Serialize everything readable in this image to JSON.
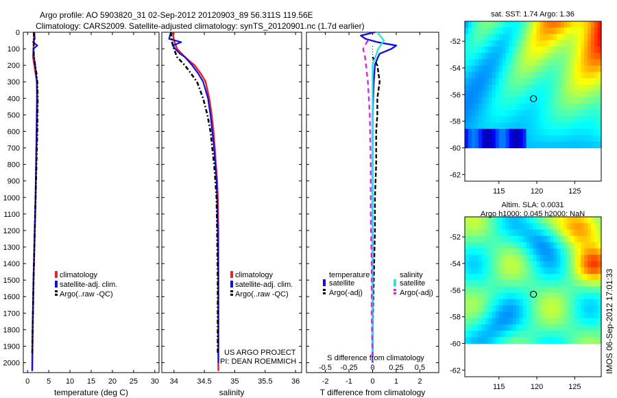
{
  "header": {
    "title_line1": "Argo profile: AO 5903820_31 02-Sep-2012 20120903_89 56.311S 119.56E",
    "title_line2": "Climatology: CARS2009. Satellite-adjusted climatology: synTS_20120901.nc (1.7d earlier)"
  },
  "colors": {
    "climatology": "#e8262a",
    "satellite": "#1010e0",
    "argo": "#000000",
    "salinity_satellite": "#30e0e0",
    "salinity_argo": "#e020e0"
  },
  "chart_data": [
    {
      "type": "line",
      "id": "temperature",
      "xlabel": "temperature (deg C)",
      "ylabel": "",
      "xlim": [
        -1,
        31
      ],
      "ylim": [
        2060,
        0
      ],
      "xticks": [
        0,
        5,
        10,
        15,
        20,
        25,
        30
      ],
      "yticks": [
        0,
        100,
        200,
        300,
        400,
        500,
        600,
        700,
        800,
        900,
        1000,
        1100,
        1200,
        1300,
        1400,
        1500,
        1600,
        1700,
        1800,
        1900,
        2000
      ],
      "legend": {
        "placement": "lower-center",
        "entries": [
          "climatology",
          "satellite-adj. clim.",
          "Argo(..raw -QC)"
        ]
      },
      "series": [
        {
          "name": "climatology",
          "depth": [
            0,
            50,
            100,
            150,
            200,
            300,
            400,
            600,
            800,
            1000,
            1200,
            1500,
            1800,
            2050
          ],
          "values": [
            1.5,
            1.5,
            1.4,
            1.3,
            1.6,
            2.2,
            2.3,
            2.2,
            2.0,
            1.9,
            1.7,
            1.4,
            1.2,
            1.1
          ]
        },
        {
          "name": "satellite-adj. clim.",
          "depth": [
            0,
            40,
            60,
            80,
            100,
            150,
            200,
            300,
            400,
            600,
            800,
            1000,
            1200,
            1500,
            1800,
            2050
          ],
          "values": [
            1.6,
            1.7,
            1.3,
            2.3,
            1.4,
            1.5,
            1.8,
            2.2,
            2.2,
            2.1,
            2.0,
            1.9,
            1.7,
            1.4,
            1.2,
            1.1
          ]
        },
        {
          "name": "Argo(..raw -QC)",
          "depth": [
            0,
            50,
            100,
            150,
            200,
            250,
            300,
            400,
            600,
            800,
            1000,
            1200,
            1500,
            1800,
            1950
          ],
          "values": [
            1.5,
            1.5,
            1.4,
            1.5,
            1.8,
            2.1,
            2.3,
            2.4,
            2.3,
            2.1,
            1.9,
            1.7,
            1.4,
            1.2,
            1.1
          ]
        }
      ]
    },
    {
      "type": "line",
      "id": "salinity",
      "xlabel": "salinity",
      "ylabel": "",
      "xlim": [
        33.8,
        36.1
      ],
      "ylim": [
        2060,
        0
      ],
      "xticks": [
        34,
        34.5,
        35,
        35.5,
        36
      ],
      "legend": {
        "placement": "lower-center",
        "entries": [
          "climatology",
          "satellite-adj. clim.",
          "Argo(..raw -QC)"
        ]
      },
      "annotation": [
        "US ARGO PROJECT",
        "PI: DEAN ROEMMICH"
      ],
      "series": [
        {
          "name": "climatology",
          "depth": [
            0,
            50,
            100,
            150,
            200,
            250,
            300,
            400,
            500,
            600,
            700,
            800,
            900,
            1000,
            1200,
            1500,
            1800,
            2050
          ],
          "values": [
            33.98,
            34.0,
            34.05,
            34.18,
            34.34,
            34.44,
            34.52,
            34.58,
            34.62,
            34.65,
            34.67,
            34.69,
            34.71,
            34.72,
            34.73,
            34.73,
            34.73,
            34.73
          ]
        },
        {
          "name": "satellite-adj. clim.",
          "depth": [
            0,
            40,
            60,
            80,
            100,
            130,
            150,
            200,
            250,
            300,
            400,
            500,
            600,
            700,
            800,
            900,
            1000,
            1200,
            1500,
            1800,
            2000
          ],
          "values": [
            33.95,
            33.92,
            34.12,
            33.98,
            34.02,
            34.1,
            34.18,
            34.3,
            34.4,
            34.48,
            34.56,
            34.6,
            34.63,
            34.66,
            34.68,
            34.7,
            34.71,
            34.72,
            34.73,
            34.73,
            34.73
          ]
        },
        {
          "name": "Argo(..raw -QC)",
          "depth": [
            0,
            50,
            100,
            150,
            200,
            250,
            300,
            400,
            500,
            600,
            700,
            800,
            900,
            1000,
            1200,
            1500,
            1800,
            1950
          ],
          "values": [
            33.95,
            33.96,
            34.0,
            34.05,
            34.18,
            34.28,
            34.38,
            34.48,
            34.55,
            34.6,
            34.63,
            34.66,
            34.68,
            34.7,
            34.71,
            34.72,
            34.72,
            34.72
          ]
        }
      ]
    },
    {
      "type": "line",
      "id": "differences",
      "xlabel": "T difference from climatology",
      "xlabel_top": "S difference from climatology",
      "ylabel": "",
      "xlim": [
        -2.8,
        2.8
      ],
      "ylim": [
        2060,
        0
      ],
      "xticks_bottom": [
        -2,
        -1,
        0,
        1,
        2
      ],
      "xticks_top": [
        -0.5,
        -0.25,
        0,
        0.25,
        0.5
      ],
      "xticks_top_labels": [
        "-0.5",
        "-0.25",
        "0",
        "0.25",
        "0.5"
      ],
      "legend": {
        "placement": "lower-center",
        "headers": [
          "temperature",
          "salinity"
        ],
        "entries": [
          "satellite",
          "Argo(-adj)",
          "satellite",
          "Argo(-adj)"
        ]
      },
      "series": [
        {
          "name": "satellite",
          "group": "temperature",
          "depth": [
            0,
            20,
            40,
            60,
            80,
            100,
            130,
            160,
            200,
            300,
            500,
            800,
            1200,
            1600,
            2000
          ],
          "values": [
            0.1,
            -0.5,
            -0.3,
            0.2,
            1.0,
            0.8,
            0.3,
            0.2,
            0.1,
            0.05,
            0.0,
            0.0,
            0.0,
            0.0,
            0.0
          ]
        },
        {
          "name": "Argo(-adj)",
          "group": "temperature",
          "depth": [
            150,
            200,
            300,
            400,
            500,
            600,
            800,
            1000,
            1200,
            1500,
            1800,
            1950
          ],
          "values": [
            0.0,
            0.2,
            0.3,
            0.2,
            0.2,
            0.15,
            0.15,
            0.1,
            0.1,
            0.05,
            0.0,
            0.0
          ]
        },
        {
          "name": "satellite",
          "group": "salinity",
          "depth": [
            0,
            50,
            100,
            150,
            200,
            300,
            500,
            800,
            1200,
            1600,
            2000
          ],
          "values": [
            0.05,
            0.12,
            0.06,
            0.03,
            0.0,
            0.0,
            0.0,
            0.0,
            0.0,
            0.0,
            0.0
          ]
        },
        {
          "name": "Argo(-adj)",
          "group": "salinity",
          "depth": [
            50,
            100,
            150,
            300,
            500,
            800,
            1100,
            1400,
            1700,
            2000
          ],
          "values": [
            -0.05,
            -0.1,
            -0.08,
            -0.05,
            -0.03,
            -0.02,
            -0.02,
            -0.01,
            -0.01,
            0.0
          ]
        }
      ]
    },
    {
      "type": "heatmap",
      "id": "sst-map",
      "title": "sat. SST: 1.74 Argo: 1.36",
      "xlim": [
        110.5,
        128.5
      ],
      "ylim": [
        -62.5,
        -50.5
      ],
      "xticks": [
        115,
        120,
        125
      ],
      "yticks": [
        -52,
        -54,
        -56,
        -58,
        -60,
        -62
      ],
      "marker": {
        "lon": 119.56,
        "lat": -56.311
      }
    },
    {
      "type": "heatmap",
      "id": "sla-map",
      "title_line1": "Altim. SLA: 0.0031",
      "title_line2": "Argo h1000: 0.045 h2000: NaN",
      "xlim": [
        110.5,
        128.5
      ],
      "ylim": [
        -62.5,
        -50.5
      ],
      "xticks": [
        115,
        120,
        125
      ],
      "yticks": [
        -52,
        -54,
        -56,
        -58,
        -60,
        -62
      ],
      "marker": {
        "lon": 119.56,
        "lat": -56.311
      }
    }
  ],
  "footer": {
    "stamp": "IMOS 06-Sep-2012 17:01:33"
  }
}
